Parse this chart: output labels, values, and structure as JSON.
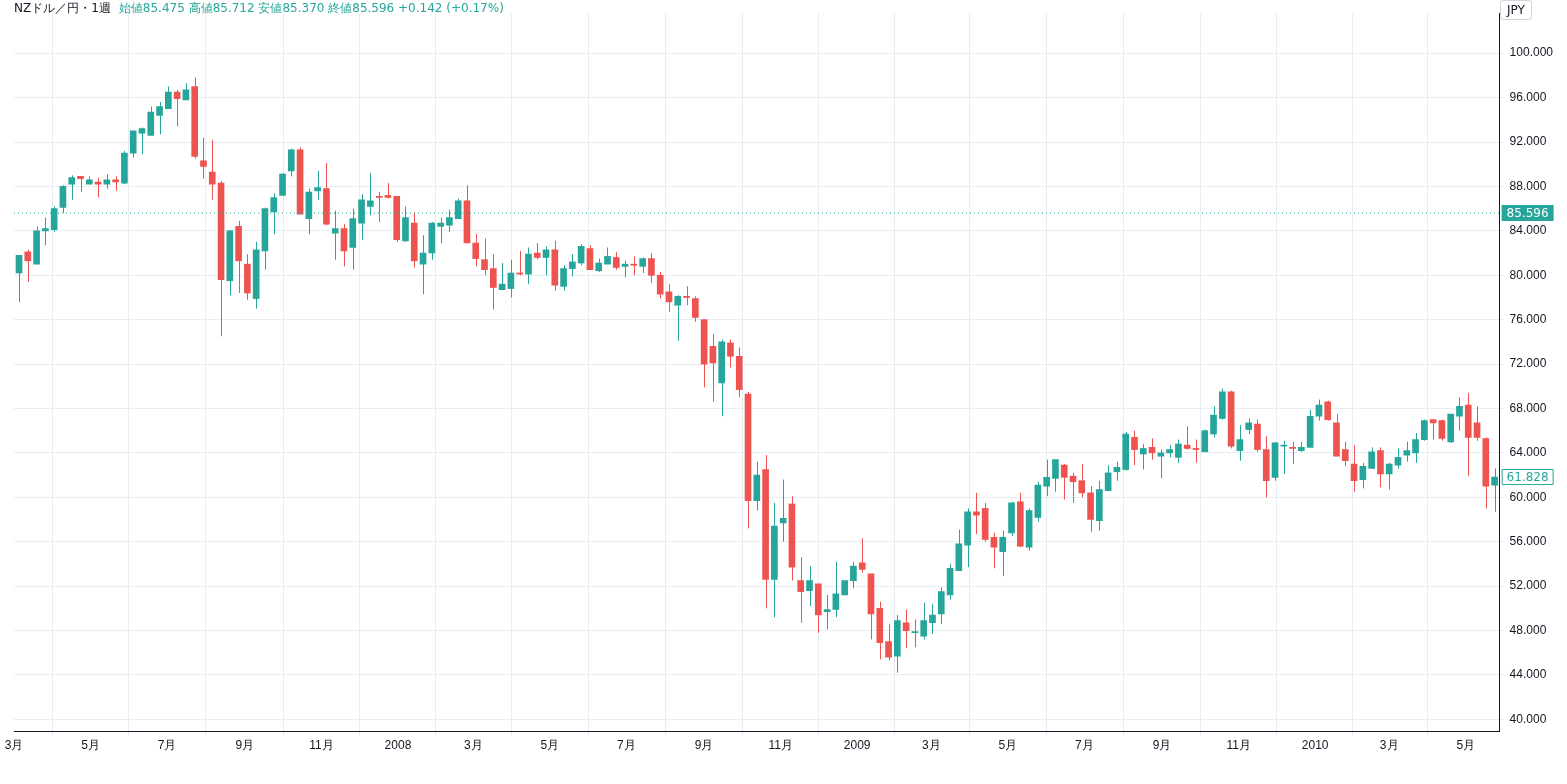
{
  "chart_data": {
    "type": "candlestick",
    "title": "NZドル／円・1週",
    "subtitle": "始値85.475 高値85.712 安値85.370 終値85.596 +0.142 (+0.17%)",
    "ylabel": "JPY",
    "x": [
      "2007-03-05",
      "2007-03-12",
      "2007-03-19",
      "2007-03-26",
      "2007-04-02",
      "2007-04-09",
      "2007-04-16",
      "2007-04-23",
      "2007-04-30",
      "2007-05-07",
      "2007-05-14",
      "2007-05-21",
      "2007-05-28",
      "2007-06-04",
      "2007-06-11",
      "2007-06-18",
      "2007-06-25",
      "2007-07-02",
      "2007-07-09",
      "2007-07-16",
      "2007-07-23",
      "2007-07-30",
      "2007-08-06",
      "2007-08-13",
      "2007-08-20",
      "2007-08-27",
      "2007-09-03",
      "2007-09-10",
      "2007-09-17",
      "2007-09-24",
      "2007-10-01",
      "2007-10-08",
      "2007-10-15",
      "2007-10-22",
      "2007-10-29",
      "2007-11-05",
      "2007-11-12",
      "2007-11-19",
      "2007-11-26",
      "2007-12-03",
      "2007-12-10",
      "2007-12-17",
      "2007-12-24",
      "2007-12-31",
      "2008-01-07",
      "2008-01-14",
      "2008-01-21",
      "2008-01-28",
      "2008-02-04",
      "2008-02-11",
      "2008-02-18",
      "2008-02-25",
      "2008-03-03",
      "2008-03-10",
      "2008-03-17",
      "2008-03-24",
      "2008-03-31",
      "2008-04-07",
      "2008-04-14",
      "2008-04-21",
      "2008-04-28",
      "2008-05-05",
      "2008-05-12",
      "2008-05-19",
      "2008-05-26",
      "2008-06-02",
      "2008-06-09",
      "2008-06-16",
      "2008-06-23",
      "2008-06-30",
      "2008-07-07",
      "2008-07-14",
      "2008-07-21",
      "2008-07-28",
      "2008-08-04",
      "2008-08-11",
      "2008-08-18",
      "2008-08-25",
      "2008-09-01",
      "2008-09-08",
      "2008-09-15",
      "2008-09-22",
      "2008-09-29",
      "2008-10-06",
      "2008-10-13",
      "2008-10-20",
      "2008-10-27",
      "2008-11-03",
      "2008-11-10",
      "2008-11-17",
      "2008-11-24",
      "2008-12-01",
      "2008-12-08",
      "2008-12-15",
      "2008-12-22",
      "2008-12-29",
      "2009-01-05",
      "2009-01-12",
      "2009-01-19",
      "2009-01-26",
      "2009-02-02",
      "2009-02-09",
      "2009-02-16",
      "2009-02-23",
      "2009-03-02",
      "2009-03-09",
      "2009-03-16",
      "2009-03-23",
      "2009-03-30",
      "2009-04-06",
      "2009-04-13",
      "2009-04-20",
      "2009-04-27",
      "2009-05-04",
      "2009-05-11",
      "2009-05-18",
      "2009-05-25",
      "2009-06-01",
      "2009-06-08",
      "2009-06-15",
      "2009-06-22",
      "2009-06-29",
      "2009-07-06",
      "2009-07-13",
      "2009-07-20",
      "2009-07-27",
      "2009-08-03",
      "2009-08-10",
      "2009-08-17",
      "2009-08-24",
      "2009-08-31",
      "2009-09-07",
      "2009-09-14",
      "2009-09-21",
      "2009-09-28",
      "2009-10-05",
      "2009-10-12",
      "2009-10-19",
      "2009-10-26",
      "2009-11-02",
      "2009-11-09",
      "2009-11-16",
      "2009-11-23",
      "2009-11-30",
      "2009-12-07",
      "2009-12-14",
      "2009-12-21",
      "2009-12-28",
      "2010-01-04",
      "2010-01-11",
      "2010-01-18",
      "2010-01-25",
      "2010-02-01",
      "2010-02-08",
      "2010-02-15",
      "2010-02-22",
      "2010-03-01",
      "2010-03-08",
      "2010-03-15",
      "2010-03-22",
      "2010-03-29",
      "2010-04-05",
      "2010-04-12",
      "2010-04-19",
      "2010-04-26",
      "2010-05-03",
      "2010-05-10",
      "2010-05-17",
      "2010-05-24"
    ],
    "ohlc": [
      [
        80.2,
        81.8,
        77.6,
        81.8
      ],
      [
        82.1,
        82.3,
        79.4,
        81.3
      ],
      [
        81.0,
        84.4,
        81.0,
        84.0
      ],
      [
        84.0,
        85.2,
        82.7,
        84.2
      ],
      [
        84.1,
        86.2,
        83.9,
        86.0
      ],
      [
        86.1,
        88.1,
        85.6,
        88.0
      ],
      [
        88.2,
        89.0,
        86.8,
        88.8
      ],
      [
        88.9,
        88.9,
        87.5,
        88.7
      ],
      [
        88.2,
        88.9,
        88.2,
        88.6
      ],
      [
        88.4,
        88.8,
        87.0,
        88.2
      ],
      [
        88.2,
        89.1,
        87.8,
        88.6
      ],
      [
        88.6,
        88.9,
        87.6,
        88.4
      ],
      [
        88.3,
        91.2,
        88.2,
        91.0
      ],
      [
        91.0,
        93.0,
        90.6,
        93.0
      ],
      [
        92.8,
        93.3,
        90.9,
        93.2
      ],
      [
        92.6,
        95.2,
        92.6,
        94.7
      ],
      [
        94.4,
        95.6,
        92.7,
        95.2
      ],
      [
        95.0,
        97.0,
        95.0,
        96.5
      ],
      [
        96.5,
        96.7,
        93.4,
        95.9
      ],
      [
        95.8,
        97.3,
        95.8,
        96.7
      ],
      [
        97.0,
        97.8,
        90.5,
        90.7
      ],
      [
        90.3,
        92.4,
        88.7,
        89.8
      ],
      [
        89.3,
        92.2,
        86.8,
        88.2
      ],
      [
        88.3,
        88.5,
        74.5,
        79.6
      ],
      [
        79.5,
        84.1,
        78.2,
        84.0
      ],
      [
        84.4,
        84.9,
        78.4,
        81.3
      ],
      [
        81.0,
        81.9,
        77.8,
        78.4
      ],
      [
        77.9,
        83.0,
        77.0,
        82.3
      ],
      [
        82.2,
        86.1,
        80.5,
        86.0
      ],
      [
        85.7,
        87.4,
        83.7,
        87.0
      ],
      [
        87.2,
        89.2,
        87.2,
        89.1
      ],
      [
        89.4,
        91.4,
        88.9,
        91.3
      ],
      [
        91.3,
        91.5,
        85.5,
        85.5
      ],
      [
        85.1,
        87.8,
        83.7,
        87.5
      ],
      [
        87.6,
        89.4,
        86.8,
        87.9
      ],
      [
        87.8,
        90.1,
        84.5,
        84.6
      ],
      [
        83.8,
        85.8,
        81.4,
        84.2
      ],
      [
        84.2,
        84.6,
        80.8,
        82.2
      ],
      [
        82.5,
        86.0,
        80.5,
        85.1
      ],
      [
        84.7,
        87.3,
        83.2,
        86.8
      ],
      [
        86.2,
        89.2,
        85.4,
        86.7
      ],
      [
        87.1,
        87.5,
        84.8,
        87.0
      ],
      [
        87.2,
        88.3,
        86.9,
        87.0
      ],
      [
        87.1,
        87.1,
        83.0,
        83.2
      ],
      [
        83.1,
        86.2,
        83.0,
        85.2
      ],
      [
        84.7,
        85.7,
        80.7,
        81.3
      ],
      [
        81.0,
        83.6,
        78.3,
        82.0
      ],
      [
        82.0,
        84.8,
        81.4,
        84.7
      ],
      [
        84.4,
        85.2,
        82.9,
        84.7
      ],
      [
        84.5,
        85.9,
        83.9,
        85.2
      ],
      [
        85.1,
        86.9,
        85.1,
        86.7
      ],
      [
        86.7,
        88.1,
        82.9,
        82.9
      ],
      [
        82.9,
        83.7,
        80.8,
        81.5
      ],
      [
        81.4,
        83.3,
        80.0,
        80.5
      ],
      [
        80.6,
        81.9,
        76.9,
        78.9
      ],
      [
        78.7,
        81.1,
        78.7,
        79.2
      ],
      [
        78.8,
        81.4,
        78.0,
        80.2
      ],
      [
        80.2,
        82.2,
        80.0,
        80.1
      ],
      [
        80.1,
        82.5,
        79.2,
        81.9
      ],
      [
        82.0,
        82.9,
        81.4,
        81.6
      ],
      [
        81.6,
        82.6,
        80.0,
        82.3
      ],
      [
        82.3,
        83.1,
        78.6,
        79.1
      ],
      [
        79.0,
        80.9,
        78.6,
        80.6
      ],
      [
        80.6,
        81.9,
        79.9,
        81.2
      ],
      [
        81.1,
        82.8,
        80.9,
        82.6
      ],
      [
        82.4,
        82.7,
        80.5,
        80.5
      ],
      [
        80.4,
        81.5,
        80.3,
        81.1
      ],
      [
        81.0,
        82.5,
        81.0,
        81.7
      ],
      [
        81.6,
        82.1,
        80.5,
        80.7
      ],
      [
        80.8,
        81.3,
        79.8,
        81.0
      ],
      [
        81.0,
        81.7,
        80.0,
        80.9
      ],
      [
        80.8,
        81.6,
        80.2,
        81.5
      ],
      [
        81.5,
        82.0,
        79.3,
        80.0
      ],
      [
        80.0,
        80.3,
        77.9,
        78.3
      ],
      [
        78.5,
        79.2,
        76.7,
        77.6
      ],
      [
        77.3,
        78.2,
        74.1,
        78.1
      ],
      [
        78.1,
        79.0,
        77.3,
        78.0
      ],
      [
        77.9,
        78.1,
        75.8,
        76.2
      ],
      [
        76.0,
        76.0,
        69.9,
        72.0
      ],
      [
        73.6,
        74.7,
        68.6,
        72.1
      ],
      [
        70.3,
        74.2,
        67.3,
        74.0
      ],
      [
        73.9,
        74.2,
        71.7,
        72.7
      ],
      [
        72.7,
        73.5,
        69.0,
        69.7
      ],
      [
        69.3,
        69.5,
        57.2,
        59.7
      ],
      [
        59.7,
        63.2,
        58.8,
        62.0
      ],
      [
        62.5,
        63.8,
        50.0,
        52.6
      ],
      [
        52.6,
        59.5,
        49.2,
        57.4
      ],
      [
        57.7,
        61.6,
        56.0,
        58.1
      ],
      [
        59.4,
        60.1,
        52.5,
        53.7
      ],
      [
        52.5,
        54.6,
        48.7,
        51.5
      ],
      [
        51.6,
        53.8,
        50.2,
        52.5
      ],
      [
        52.2,
        52.2,
        47.8,
        49.4
      ],
      [
        49.7,
        51.2,
        48.1,
        49.9
      ],
      [
        49.9,
        54.2,
        49.2,
        51.3
      ],
      [
        51.2,
        52.5,
        51.2,
        52.5
      ],
      [
        52.5,
        54.2,
        51.8,
        53.8
      ],
      [
        54.1,
        56.3,
        53.2,
        53.5
      ],
      [
        53.1,
        53.1,
        47.2,
        49.5
      ],
      [
        50.0,
        50.6,
        45.4,
        46.9
      ],
      [
        47.0,
        48.6,
        45.3,
        45.6
      ],
      [
        45.7,
        49.4,
        44.2,
        48.9
      ],
      [
        48.7,
        49.9,
        46.4,
        48.0
      ],
      [
        47.8,
        49.0,
        46.5,
        47.9
      ],
      [
        47.5,
        50.5,
        47.2,
        48.9
      ],
      [
        48.7,
        50.4,
        47.7,
        49.4
      ],
      [
        49.5,
        51.9,
        48.6,
        51.5
      ],
      [
        51.2,
        54.0,
        50.8,
        53.6
      ],
      [
        53.4,
        57.1,
        53.4,
        55.8
      ],
      [
        55.7,
        59.0,
        53.7,
        58.7
      ],
      [
        58.7,
        60.4,
        56.7,
        58.4
      ],
      [
        59.0,
        59.5,
        56.0,
        56.2
      ],
      [
        56.4,
        56.8,
        53.6,
        55.5
      ],
      [
        55.1,
        57.0,
        52.9,
        56.4
      ],
      [
        56.8,
        59.6,
        56.5,
        59.5
      ],
      [
        59.6,
        60.4,
        55.5,
        55.6
      ],
      [
        55.5,
        59.0,
        55.2,
        58.8
      ],
      [
        58.2,
        61.4,
        57.8,
        61.1
      ],
      [
        61.0,
        63.4,
        60.1,
        61.8
      ],
      [
        61.7,
        63.4,
        60.5,
        63.4
      ],
      [
        62.9,
        63.0,
        59.8,
        61.8
      ],
      [
        61.9,
        62.2,
        59.5,
        61.4
      ],
      [
        61.5,
        63.0,
        60.0,
        60.4
      ],
      [
        60.4,
        61.0,
        56.9,
        58.0
      ],
      [
        57.9,
        61.5,
        57.0,
        60.7
      ],
      [
        60.6,
        62.9,
        60.6,
        62.2
      ],
      [
        62.3,
        63.2,
        61.5,
        62.7
      ],
      [
        62.5,
        65.9,
        62.4,
        65.7
      ],
      [
        65.4,
        66.0,
        62.9,
        64.3
      ],
      [
        63.9,
        64.8,
        62.5,
        64.4
      ],
      [
        64.5,
        65.3,
        63.4,
        64.0
      ],
      [
        63.7,
        64.3,
        61.7,
        64.0
      ],
      [
        64.0,
        64.7,
        63.6,
        64.3
      ],
      [
        63.6,
        65.2,
        63.1,
        64.8
      ],
      [
        64.7,
        66.4,
        64.3,
        64.4
      ],
      [
        64.4,
        65.2,
        63.1,
        64.3
      ],
      [
        64.1,
        66.1,
        64.1,
        66.0
      ],
      [
        65.7,
        68.2,
        65.4,
        67.4
      ],
      [
        67.1,
        69.8,
        67.0,
        69.5
      ],
      [
        69.5,
        69.6,
        64.4,
        64.6
      ],
      [
        64.2,
        66.5,
        63.3,
        65.2
      ],
      [
        66.1,
        67.1,
        65.7,
        66.7
      ],
      [
        66.6,
        67.0,
        64.1,
        64.3
      ],
      [
        64.3,
        65.5,
        60.0,
        61.5
      ],
      [
        61.8,
        65.0,
        61.5,
        64.9
      ],
      [
        64.6,
        65.1,
        62.1,
        64.7
      ],
      [
        64.5,
        65.0,
        63.0,
        64.4
      ],
      [
        64.2,
        65.0,
        64.1,
        64.5
      ],
      [
        64.5,
        67.9,
        64.5,
        67.3
      ],
      [
        67.3,
        68.8,
        66.9,
        68.3
      ],
      [
        68.6,
        68.7,
        66.9,
        67.0
      ],
      [
        66.7,
        67.5,
        63.7,
        63.7
      ],
      [
        64.3,
        65.0,
        62.8,
        63.3
      ],
      [
        63.0,
        64.7,
        60.5,
        61.5
      ],
      [
        61.6,
        63.1,
        60.8,
        62.8
      ],
      [
        62.6,
        64.5,
        62.6,
        64.1
      ],
      [
        64.2,
        64.5,
        60.9,
        62.1
      ],
      [
        62.1,
        63.1,
        60.7,
        63.0
      ],
      [
        62.9,
        64.4,
        62.6,
        63.6
      ],
      [
        63.8,
        65.0,
        63.2,
        64.2
      ],
      [
        64.0,
        65.8,
        63.1,
        65.2
      ],
      [
        65.2,
        67.0,
        65.1,
        66.9
      ],
      [
        67.0,
        67.0,
        65.2,
        66.7
      ],
      [
        66.9,
        67.0,
        65.1,
        65.3
      ],
      [
        65.0,
        67.5,
        64.9,
        67.5
      ],
      [
        67.3,
        69.0,
        66.0,
        68.2
      ],
      [
        68.3,
        69.4,
        61.9,
        65.4
      ],
      [
        66.7,
        68.2,
        65.1,
        65.4
      ],
      [
        65.3,
        65.4,
        59.0,
        61.0
      ],
      [
        61.1,
        62.6,
        58.7,
        61.828
      ]
    ],
    "colors": [
      "#26a69a",
      "#ef5350",
      "#26a69a",
      "#26a69a",
      "#26a69a",
      "#26a69a",
      "#26a69a",
      "#ef5350",
      "#26a69a",
      "#ef5350",
      "#26a69a",
      "#ef5350",
      "#26a69a",
      "#26a69a",
      "#26a69a",
      "#26a69a",
      "#26a69a",
      "#26a69a",
      "#ef5350",
      "#26a69a",
      "#ef5350",
      "#ef5350",
      "#ef5350",
      "#ef5350",
      "#26a69a",
      "#ef5350",
      "#ef5350",
      "#26a69a",
      "#26a69a",
      "#26a69a",
      "#26a69a",
      "#26a69a",
      "#ef5350",
      "#26a69a",
      "#26a69a",
      "#ef5350",
      "#26a69a",
      "#ef5350",
      "#26a69a",
      "#26a69a",
      "#26a69a",
      "#ef5350",
      "#ef5350",
      "#ef5350",
      "#26a69a",
      "#ef5350",
      "#26a69a",
      "#26a69a",
      "#26a69a",
      "#26a69a",
      "#26a69a",
      "#ef5350",
      "#ef5350",
      "#ef5350",
      "#ef5350",
      "#26a69a",
      "#26a69a",
      "#ef5350",
      "#26a69a",
      "#ef5350",
      "#26a69a",
      "#ef5350",
      "#26a69a",
      "#26a69a",
      "#26a69a",
      "#ef5350",
      "#26a69a",
      "#26a69a",
      "#ef5350",
      "#26a69a",
      "#ef5350",
      "#26a69a",
      "#ef5350",
      "#ef5350",
      "#ef5350",
      "#26a69a",
      "#ef5350",
      "#ef5350",
      "#ef5350",
      "#ef5350",
      "#26a69a",
      "#ef5350",
      "#ef5350",
      "#ef5350",
      "#26a69a",
      "#ef5350",
      "#26a69a",
      "#26a69a",
      "#ef5350",
      "#ef5350",
      "#26a69a",
      "#ef5350",
      "#26a69a",
      "#26a69a",
      "#26a69a",
      "#26a69a",
      "#ef5350",
      "#ef5350",
      "#ef5350",
      "#ef5350",
      "#26a69a",
      "#ef5350",
      "#26a69a",
      "#26a69a",
      "#26a69a",
      "#26a69a",
      "#26a69a",
      "#26a69a",
      "#26a69a",
      "#ef5350",
      "#ef5350",
      "#ef5350",
      "#26a69a",
      "#26a69a",
      "#ef5350",
      "#26a69a",
      "#26a69a",
      "#26a69a",
      "#26a69a",
      "#ef5350",
      "#ef5350",
      "#ef5350",
      "#ef5350",
      "#26a69a",
      "#26a69a",
      "#26a69a",
      "#26a69a",
      "#ef5350",
      "#26a69a",
      "#ef5350",
      "#26a69a",
      "#26a69a",
      "#26a69a",
      "#ef5350",
      "#ef5350",
      "#26a69a",
      "#26a69a",
      "#26a69a",
      "#ef5350",
      "#26a69a",
      "#26a69a",
      "#ef5350",
      "#ef5350",
      "#26a69a",
      "#26a69a",
      "#ef5350",
      "#26a69a",
      "#26a69a",
      "#26a69a",
      "#ef5350",
      "#ef5350",
      "#ef5350",
      "#ef5350",
      "#26a69a",
      "#26a69a",
      "#ef5350",
      "#26a69a",
      "#26a69a",
      "#26a69a",
      "#26a69a",
      "#26a69a",
      "#ef5350",
      "#ef5350",
      "#26a69a",
      "#26a69a",
      "#ef5350",
      "#ef5350",
      "#ef5350",
      "#26a69a"
    ],
    "xlim": [
      "2007-03-01",
      "2010-05-28"
    ],
    "xticks": [
      {
        "value": "2007-03-01",
        "label": "3月"
      },
      {
        "value": "2007-05-01",
        "label": "5月"
      },
      {
        "value": "2007-07-01",
        "label": "7月"
      },
      {
        "value": "2007-09-01",
        "label": "9月"
      },
      {
        "value": "2007-11-01",
        "label": "11月"
      },
      {
        "value": "2008-01-01",
        "label": "2008"
      },
      {
        "value": "2008-03-01",
        "label": "3月"
      },
      {
        "value": "2008-05-01",
        "label": "5月"
      },
      {
        "value": "2008-07-01",
        "label": "7月"
      },
      {
        "value": "2008-09-01",
        "label": "9月"
      },
      {
        "value": "2008-11-01",
        "label": "11月"
      },
      {
        "value": "2009-01-01",
        "label": "2009"
      },
      {
        "value": "2009-03-01",
        "label": "3月"
      },
      {
        "value": "2009-05-01",
        "label": "5月"
      },
      {
        "value": "2009-07-01",
        "label": "7月"
      },
      {
        "value": "2009-09-01",
        "label": "9月"
      },
      {
        "value": "2009-11-01",
        "label": "11月"
      },
      {
        "value": "2010-01-01",
        "label": "2010"
      },
      {
        "value": "2010-03-01",
        "label": "3月"
      },
      {
        "value": "2010-05-01",
        "label": "5月"
      }
    ],
    "ylim": [
      38.9,
      103.6
    ],
    "yticks": [
      {
        "value": 40,
        "label": "40.000"
      },
      {
        "value": 44,
        "label": "44.000"
      },
      {
        "value": 48,
        "label": "48.000"
      },
      {
        "value": 52,
        "label": "52.000"
      },
      {
        "value": 56,
        "label": "56.000"
      },
      {
        "value": 60,
        "label": "60.000"
      },
      {
        "value": 64,
        "label": "64.000"
      },
      {
        "value": 68,
        "label": "68.000"
      },
      {
        "value": 72,
        "label": "72.000"
      },
      {
        "value": 76,
        "label": "76.000"
      },
      {
        "value": 80,
        "label": "80.000"
      },
      {
        "value": 84,
        "label": "84.000"
      },
      {
        "value": 88,
        "label": "88.000"
      },
      {
        "value": 92,
        "label": "92.000"
      },
      {
        "value": 96,
        "label": "96.000"
      },
      {
        "value": 100,
        "label": "100.000"
      }
    ],
    "grid": true,
    "ref_lines": [
      {
        "axis": "y",
        "value": 85.596,
        "label": "85.596",
        "color": "#26a69a",
        "line_style": "dotted"
      }
    ],
    "annotations": [
      {
        "text": "61.828",
        "x": "2010-05-24",
        "y": 61.828
      }
    ]
  }
}
